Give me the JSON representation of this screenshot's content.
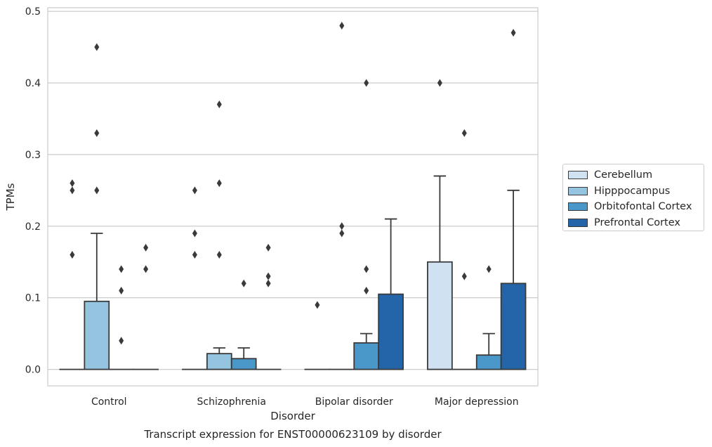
{
  "chart_data": {
    "type": "bar",
    "title": "",
    "caption": "Transcript expression for ENST00000623109 by disorder",
    "xlabel": "Disorder",
    "ylabel": "TPMs",
    "ylim": [
      -0.023,
      0.505
    ],
    "yticks": [
      0.0,
      0.1,
      0.2,
      0.3,
      0.4,
      0.5
    ],
    "ytick_labels": [
      "0.0",
      "0.1",
      "0.2",
      "0.3",
      "0.4",
      "0.5"
    ],
    "grid": "horizontal",
    "legend_position": "right",
    "categories": [
      "Control",
      "Schizophrenia",
      "Bipolar disorder",
      "Major depression"
    ],
    "series": [
      {
        "name": "Cerebellum",
        "color": "#d0e1f2",
        "values": [
          0.0,
          0.0,
          0.0,
          0.15
        ],
        "whisker_high": [
          0.0,
          0.0,
          0.0,
          0.27
        ],
        "outliers": [
          [
            0.16,
            0.25,
            0.26
          ],
          [
            0.16,
            0.19,
            0.25
          ],
          [
            0.09
          ],
          [
            0.4
          ]
        ]
      },
      {
        "name": "Hipppocampus",
        "color": "#94c4df",
        "values": [
          0.095,
          0.022,
          0.0,
          0.0
        ],
        "whisker_high": [
          0.19,
          0.03,
          0.0,
          0.0
        ],
        "outliers": [
          [
            0.25,
            0.33,
            0.45
          ],
          [
            0.16,
            0.26,
            0.37
          ],
          [
            0.19,
            0.2,
            0.48
          ],
          [
            0.13,
            0.33
          ]
        ]
      },
      {
        "name": "Orbitofontal Cortex",
        "color": "#4a98c9",
        "values": [
          0.0,
          0.015,
          0.037,
          0.02
        ],
        "whisker_high": [
          0.0,
          0.03,
          0.05,
          0.05
        ],
        "outliers": [
          [
            0.04,
            0.11,
            0.14
          ],
          [
            0.12
          ],
          [
            0.11,
            0.14,
            0.4
          ],
          [
            0.14
          ]
        ]
      },
      {
        "name": "Prefrontal Cortex",
        "color": "#2464a8",
        "values": [
          0.0,
          0.0,
          0.105,
          0.12
        ],
        "whisker_high": [
          0.0,
          0.0,
          0.21,
          0.25
        ],
        "outliers": [
          [
            0.14,
            0.17
          ],
          [
            0.12,
            0.13,
            0.17
          ],
          [],
          [
            0.47
          ]
        ]
      }
    ]
  }
}
